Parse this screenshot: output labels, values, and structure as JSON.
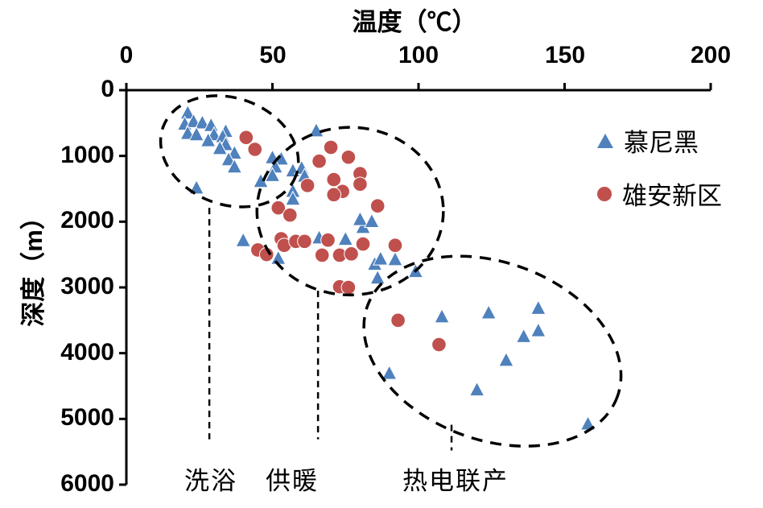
{
  "chart_data": {
    "type": "scatter",
    "title": "温度（℃）",
    "xlabel": "温度（℃）",
    "ylabel": "深度（m）",
    "xlim": [
      0,
      200
    ],
    "ylim": [
      0,
      6000
    ],
    "x_axis_position": "top",
    "y_axis_inverted": true,
    "grid": false,
    "legend_position": "top-right-inside",
    "x_ticks": [
      0,
      50,
      100,
      150,
      200
    ],
    "y_ticks": [
      0,
      1000,
      2000,
      3000,
      4000,
      5000,
      6000
    ],
    "series": [
      {
        "id": "munich",
        "name": "慕尼黑",
        "marker": "triangle",
        "color": "#4f81bd",
        "points": [
          [
            21,
            340
          ],
          [
            20,
            510
          ],
          [
            23,
            470
          ],
          [
            26,
            490
          ],
          [
            29,
            530
          ],
          [
            34,
            620
          ],
          [
            21,
            650
          ],
          [
            24,
            670
          ],
          [
            30,
            670
          ],
          [
            33,
            700
          ],
          [
            28,
            760
          ],
          [
            34,
            820
          ],
          [
            32,
            880
          ],
          [
            37,
            950
          ],
          [
            35,
            1050
          ],
          [
            37,
            1160
          ],
          [
            46,
            1380
          ],
          [
            24,
            1480
          ],
          [
            65,
            610
          ],
          [
            50,
            1020
          ],
          [
            53,
            1040
          ],
          [
            51,
            1160
          ],
          [
            57,
            1220
          ],
          [
            60,
            1180
          ],
          [
            50,
            1290
          ],
          [
            61,
            1300
          ],
          [
            57,
            1530
          ],
          [
            57,
            1650
          ],
          [
            40,
            2280
          ],
          [
            52,
            2550
          ],
          [
            66,
            2240
          ],
          [
            75,
            2260
          ],
          [
            81,
            2080
          ],
          [
            80,
            1960
          ],
          [
            84,
            1990
          ],
          [
            85,
            2640
          ],
          [
            87,
            2560
          ],
          [
            92,
            2570
          ],
          [
            86,
            2850
          ],
          [
            99,
            2750
          ],
          [
            108,
            3440
          ],
          [
            124,
            3380
          ],
          [
            141,
            3310
          ],
          [
            136,
            3740
          ],
          [
            141,
            3650
          ],
          [
            130,
            4100
          ],
          [
            120,
            4550
          ],
          [
            90,
            4300
          ],
          [
            158,
            5070
          ]
        ]
      },
      {
        "id": "xiongan",
        "name": "雄安新区",
        "marker": "circle",
        "color": "#c0504d",
        "points": [
          [
            41,
            720
          ],
          [
            44,
            900
          ],
          [
            70,
            870
          ],
          [
            66,
            1080
          ],
          [
            76,
            1020
          ],
          [
            80,
            1270
          ],
          [
            80,
            1430
          ],
          [
            71,
            1360
          ],
          [
            62,
            1450
          ],
          [
            74,
            1540
          ],
          [
            71,
            1590
          ],
          [
            52,
            1790
          ],
          [
            56,
            1900
          ],
          [
            86,
            1760
          ],
          [
            45,
            2430
          ],
          [
            48,
            2500
          ],
          [
            53,
            2260
          ],
          [
            54,
            2360
          ],
          [
            58,
            2300
          ],
          [
            61,
            2300
          ],
          [
            69,
            2280
          ],
          [
            67,
            2510
          ],
          [
            73,
            2510
          ],
          [
            77,
            2490
          ],
          [
            81,
            2340
          ],
          [
            92,
            2360
          ],
          [
            73,
            2990
          ],
          [
            76,
            3000
          ],
          [
            93,
            3500
          ],
          [
            107,
            3870
          ]
        ]
      }
    ],
    "cluster_annotations": [
      {
        "id": "bathing",
        "label": "洗浴",
        "cx": 35.3,
        "cy": 930,
        "rx_temp": 24.2,
        "ry_depth": 810,
        "rotation_deg": 20,
        "leader_temp": 28.4,
        "leader_from": 1790,
        "leader_to": 5310
      },
      {
        "id": "heating",
        "label": "供暖",
        "cx": 76.6,
        "cy": 1840,
        "rx_temp": 31.9,
        "ry_depth": 1275,
        "rotation_deg": 0,
        "leader_temp": 65.6,
        "leader_from": 3050,
        "leader_to": 5310
      },
      {
        "id": "chp",
        "label": "热电联产",
        "cx": 125.3,
        "cy": 3970,
        "rx_temp": 45.5,
        "ry_depth": 1350,
        "rotation_deg": 20,
        "leader_temp": 111.3,
        "leader_from": 5090,
        "leader_to": 5480
      }
    ]
  }
}
